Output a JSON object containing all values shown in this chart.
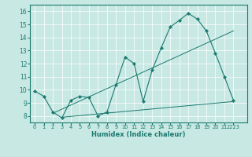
{
  "bg_color": "#c8e8e4",
  "line_color": "#1a7a6e",
  "grid_color": "#ffffff",
  "xlabel": "Humidex (Indice chaleur)",
  "xlim": [
    -0.5,
    23.5
  ],
  "ylim": [
    7.5,
    16.5
  ],
  "yticks": [
    8,
    9,
    10,
    11,
    12,
    13,
    14,
    15,
    16
  ],
  "line1_x": [
    0,
    1,
    2,
    3,
    4,
    5,
    6,
    7,
    8,
    9,
    10,
    11,
    12,
    13,
    14,
    15,
    16,
    17,
    18,
    19,
    20,
    21,
    22
  ],
  "line1_y": [
    9.9,
    9.5,
    8.3,
    7.85,
    9.2,
    9.5,
    9.4,
    8.0,
    8.3,
    10.4,
    12.5,
    12.0,
    9.1,
    11.5,
    13.2,
    14.8,
    15.3,
    15.85,
    15.4,
    14.5,
    12.8,
    11.0,
    9.2
  ],
  "line2_x": [
    2,
    22
  ],
  "line2_y": [
    8.2,
    14.5
  ],
  "line3_x": [
    3,
    22
  ],
  "line3_y": [
    7.9,
    9.1
  ],
  "marker_x": [
    0,
    1,
    2,
    3,
    4,
    5,
    6,
    7,
    8,
    9,
    10,
    11,
    12,
    13,
    14,
    15,
    16,
    17,
    18,
    19,
    20,
    21,
    22
  ],
  "marker_y": [
    9.9,
    9.5,
    8.3,
    7.85,
    9.2,
    9.5,
    9.4,
    8.0,
    8.3,
    10.4,
    12.5,
    12.0,
    9.1,
    11.5,
    13.2,
    14.8,
    15.3,
    15.85,
    15.4,
    14.5,
    12.8,
    11.0,
    9.2
  ]
}
